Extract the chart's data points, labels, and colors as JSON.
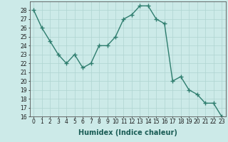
{
  "x": [
    0,
    1,
    2,
    3,
    4,
    5,
    6,
    7,
    8,
    9,
    10,
    11,
    12,
    13,
    14,
    15,
    16,
    17,
    18,
    19,
    20,
    21,
    22,
    23
  ],
  "y": [
    28,
    26,
    24.5,
    23,
    22,
    23,
    21.5,
    22,
    24,
    24,
    25,
    27,
    27.5,
    28.5,
    28.5,
    27,
    26.5,
    20,
    20.5,
    19,
    18.5,
    17.5,
    17.5,
    16
  ],
  "line_color": "#2e7d6e",
  "marker": "+",
  "marker_size": 4,
  "marker_edge_width": 1.0,
  "bg_color": "#cceae8",
  "grid_color": "#afd4d0",
  "xlabel": "Humidex (Indice chaleur)",
  "ylim": [
    16,
    29
  ],
  "xlim": [
    -0.5,
    23.5
  ],
  "yticks": [
    16,
    17,
    18,
    19,
    20,
    21,
    22,
    23,
    24,
    25,
    26,
    27,
    28
  ],
  "xticks": [
    0,
    1,
    2,
    3,
    4,
    5,
    6,
    7,
    8,
    9,
    10,
    11,
    12,
    13,
    14,
    15,
    16,
    17,
    18,
    19,
    20,
    21,
    22,
    23
  ],
  "xtick_labels": [
    "0",
    "1",
    "2",
    "3",
    "4",
    "5",
    "6",
    "7",
    "8",
    "9",
    "10",
    "11",
    "12",
    "13",
    "14",
    "15",
    "16",
    "17",
    "18",
    "19",
    "20",
    "21",
    "22",
    "23"
  ],
  "xlabel_fontsize": 7,
  "tick_fontsize": 5.5,
  "line_width": 1.0
}
